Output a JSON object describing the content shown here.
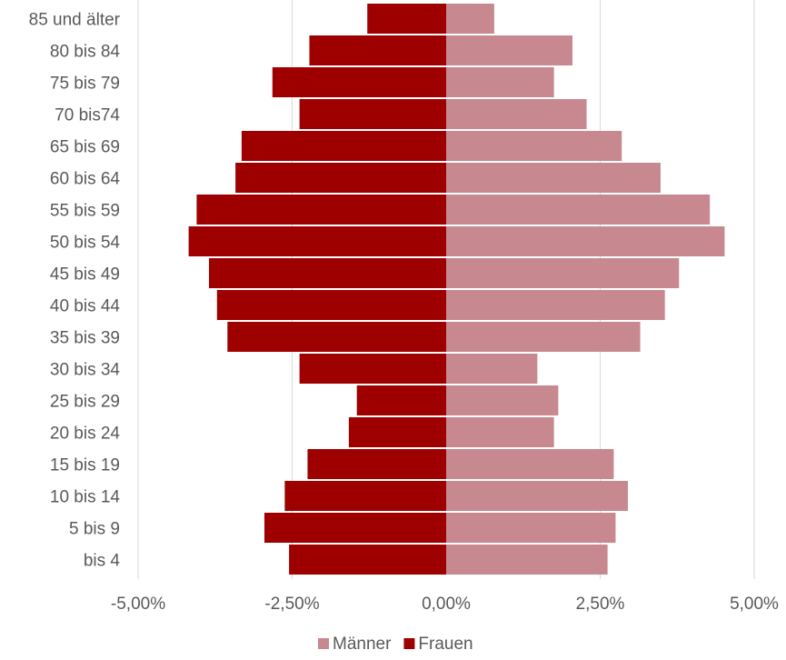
{
  "chart_data": {
    "type": "bar",
    "orientation": "horizontal",
    "layout": "population-pyramid",
    "categories": [
      "85 und älter",
      "80 bis 84",
      "75 bis 79",
      "70 bis74",
      "65 bis 69",
      "60 bis 64",
      "55 bis 59",
      "50 bis 54",
      "45 bis 49",
      "40 bis 44",
      "35 bis 39",
      "30 bis 34",
      "25 bis 29",
      "20 bis 24",
      "15 bis 19",
      "10 bis 14",
      "5 bis 9",
      "bis 4"
    ],
    "series": [
      {
        "name": "Männer",
        "color": "#c7888f",
        "side": "right",
        "values": [
          0.78,
          2.05,
          1.75,
          2.28,
          2.85,
          3.48,
          4.28,
          4.52,
          3.78,
          3.55,
          3.15,
          1.48,
          1.82,
          1.75,
          2.72,
          2.95,
          2.75,
          2.62
        ]
      },
      {
        "name": "Frauen",
        "color": "#9e0000",
        "side": "left",
        "values": [
          1.28,
          2.22,
          2.82,
          2.38,
          3.32,
          3.42,
          4.05,
          4.18,
          3.85,
          3.72,
          3.55,
          2.38,
          1.45,
          1.58,
          2.25,
          2.62,
          2.95,
          2.55
        ]
      }
    ],
    "x_ticks": [
      "-5,00%",
      "-2,50%",
      "0,00%",
      "2,50%",
      "5,00%"
    ],
    "xlim": [
      -5,
      5
    ],
    "grid": "vertical",
    "legend_position": "bottom-center",
    "title": "",
    "xlabel": "",
    "ylabel": ""
  }
}
